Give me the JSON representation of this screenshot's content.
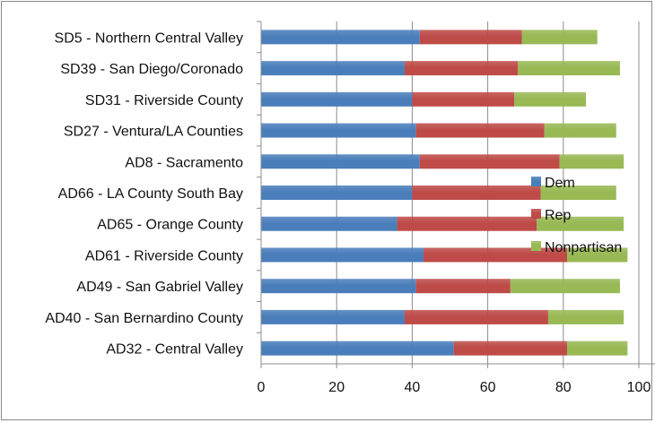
{
  "chart_data": {
    "type": "bar",
    "orientation": "horizontal",
    "stacked": true,
    "categories": [
      "SD5 - Northern Central Valley",
      "SD39 - San Diego/Coronado",
      "SD31 - Riverside County",
      "SD27 - Ventura/LA Counties",
      "AD8 - Sacramento",
      "AD66 - LA County South Bay",
      "AD65 - Orange County",
      "AD61 - Riverside County",
      "AD49 - San Gabriel Valley",
      "AD40 - San Bernardino County",
      "AD32 - Central Valley"
    ],
    "series": [
      {
        "name": "Dem",
        "color": "#4a7ebb",
        "values": [
          42,
          38,
          40,
          41,
          42,
          40,
          36,
          43,
          41,
          38,
          51
        ]
      },
      {
        "name": "Rep",
        "color": "#be4b48",
        "values": [
          27,
          30,
          27,
          34,
          37,
          34,
          37,
          38,
          25,
          38,
          30
        ]
      },
      {
        "name": "Nonpartisan",
        "color": "#98b954",
        "values": [
          20,
          27,
          19,
          19,
          17,
          20,
          23,
          16,
          29,
          20,
          16
        ]
      }
    ],
    "xlim": [
      0,
      120
    ],
    "xticks": [
      "0",
      "20",
      "40",
      "60",
      "80",
      "100",
      "120"
    ],
    "grid": "vertical",
    "legend": "right"
  }
}
